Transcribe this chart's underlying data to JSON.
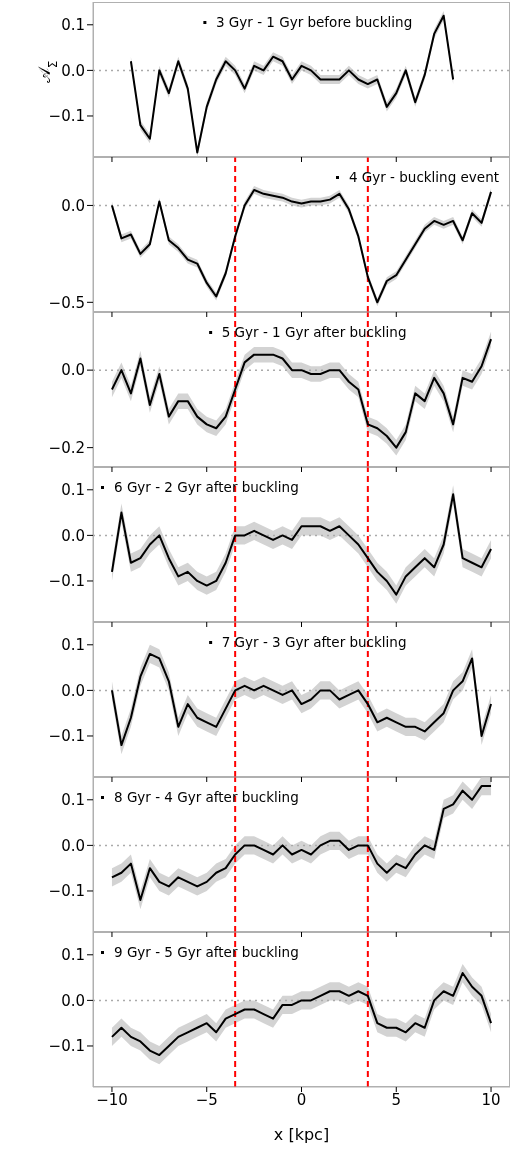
{
  "chart_data": [
    {
      "type": "line",
      "ylabel": "𝒜$_{Σ}$",
      "legend": "top",
      "tick_labels": "y",
      "marker": "none",
      "line_style": "solid",
      "xlim": [
        -11,
        11
      ],
      "xticks": [
        {
          "value": -10,
          "label": null
        },
        {
          "value": -5,
          "label": null
        },
        {
          "value": 0,
          "label": null
        },
        {
          "value": 5,
          "label": null
        },
        {
          "value": 10,
          "label": null
        }
      ],
      "ylim": [
        -0.19,
        0.15
      ],
      "yticks": [
        {
          "value": -0.1,
          "label": "−0.1"
        },
        {
          "value": 0,
          "label": "0.0"
        },
        {
          "value": 0.1,
          "label": "0.1"
        }
      ],
      "ref_lines": [
        {
          "axis": "y",
          "value": 0,
          "color": "#aaaaaa",
          "line_style": "dotted"
        }
      ],
      "x": [
        -9,
        -8.5,
        -8,
        -7.5,
        -7,
        -6.5,
        -6,
        -5.5,
        -5,
        -4.5,
        -4,
        -3.5,
        -3,
        -2.5,
        -2,
        -1.5,
        -1,
        -0.5,
        0,
        0.5,
        1,
        1.5,
        2,
        2.5,
        3,
        3.5,
        4,
        4.5,
        5,
        5.5,
        6,
        6.5,
        7,
        7.5,
        8
      ],
      "series": [
        {
          "name": "3 Gyr - 1 Gyr before buckling",
          "color": "#000000",
          "values": [
            0.02,
            -0.12,
            -0.15,
            0.0,
            -0.05,
            0.02,
            -0.04,
            -0.18,
            -0.08,
            -0.02,
            0.02,
            0.0,
            -0.04,
            0.01,
            0.0,
            0.03,
            0.02,
            -0.02,
            0.01,
            0.0,
            -0.02,
            -0.02,
            -0.02,
            0.0,
            -0.02,
            -0.03,
            -0.02,
            -0.08,
            -0.05,
            0.0,
            -0.07,
            -0.01,
            0.08,
            0.12,
            -0.02
          ],
          "lower": [
            0.01,
            -0.13,
            -0.16,
            -0.01,
            -0.06,
            0.01,
            -0.05,
            -0.19,
            -0.09,
            -0.03,
            0.01,
            -0.01,
            -0.05,
            0.0,
            -0.01,
            0.02,
            0.01,
            -0.03,
            0.0,
            -0.01,
            -0.03,
            -0.03,
            -0.03,
            -0.01,
            -0.03,
            -0.04,
            -0.03,
            -0.09,
            -0.06,
            -0.01,
            -0.08,
            -0.02,
            0.07,
            0.11,
            -0.03
          ],
          "upper": [
            0.03,
            -0.11,
            -0.14,
            0.01,
            -0.04,
            0.03,
            -0.03,
            -0.17,
            -0.07,
            -0.01,
            0.03,
            0.01,
            -0.03,
            0.02,
            0.01,
            0.04,
            0.03,
            -0.01,
            0.02,
            0.01,
            -0.01,
            -0.01,
            -0.01,
            0.01,
            -0.01,
            -0.02,
            -0.01,
            -0.07,
            -0.04,
            0.01,
            -0.06,
            0.0,
            0.09,
            0.13,
            -0.01
          ]
        }
      ]
    },
    {
      "type": "line",
      "legend": "top right",
      "tick_labels": "y",
      "marker": "none",
      "line_style": "solid",
      "xlim": [
        -11,
        11
      ],
      "xticks": [
        {
          "value": -10,
          "label": null
        },
        {
          "value": -5,
          "label": null
        },
        {
          "value": 0,
          "label": null
        },
        {
          "value": 5,
          "label": null
        },
        {
          "value": 10,
          "label": null
        }
      ],
      "ylim": [
        -0.55,
        0.25
      ],
      "yticks": [
        {
          "value": -0.5,
          "label": "−0.5"
        },
        {
          "value": 0,
          "label": "0.0"
        }
      ],
      "ref_lines": [
        {
          "axis": "y",
          "value": 0,
          "color": "#aaaaaa",
          "line_style": "dotted"
        },
        {
          "axis": "x",
          "value": -3.5,
          "color": "#ff0000",
          "line_style": "dashed"
        },
        {
          "axis": "x",
          "value": 3.5,
          "color": "#ff0000",
          "line_style": "dashed"
        }
      ],
      "x": [
        -10,
        -9.5,
        -9,
        -8.5,
        -8,
        -7.5,
        -7,
        -6.5,
        -6,
        -5.5,
        -5,
        -4.5,
        -4,
        -3.5,
        -3,
        -2.5,
        -2,
        -1.5,
        -1,
        -0.5,
        0,
        0.5,
        1,
        1.5,
        2,
        2.5,
        3,
        3.5,
        4,
        4.5,
        5,
        5.5,
        6,
        6.5,
        7,
        7.5,
        8,
        8.5,
        9,
        9.5,
        10
      ],
      "series": [
        {
          "name": "4 Gyr - buckling event",
          "color": "#000000",
          "values": [
            0.0,
            -0.17,
            -0.15,
            -0.25,
            -0.2,
            0.02,
            -0.18,
            -0.22,
            -0.28,
            -0.3,
            -0.4,
            -0.47,
            -0.35,
            -0.16,
            0.0,
            0.08,
            0.06,
            0.05,
            0.04,
            0.02,
            0.01,
            0.02,
            0.02,
            0.03,
            0.06,
            -0.02,
            -0.16,
            -0.37,
            -0.5,
            -0.39,
            -0.36,
            -0.28,
            -0.2,
            -0.12,
            -0.08,
            -0.1,
            -0.08,
            -0.18,
            -0.04,
            -0.09,
            0.07
          ],
          "lower": [
            -0.02,
            -0.19,
            -0.17,
            -0.27,
            -0.22,
            0.0,
            -0.2,
            -0.24,
            -0.3,
            -0.32,
            -0.42,
            -0.49,
            -0.37,
            -0.18,
            -0.02,
            0.06,
            0.04,
            0.03,
            0.02,
            0.0,
            -0.01,
            0.0,
            0.0,
            0.01,
            0.04,
            -0.04,
            -0.18,
            -0.39,
            -0.52,
            -0.41,
            -0.38,
            -0.3,
            -0.22,
            -0.14,
            -0.1,
            -0.12,
            -0.1,
            -0.2,
            -0.06,
            -0.11,
            0.05
          ],
          "upper": [
            0.02,
            -0.15,
            -0.13,
            -0.23,
            -0.18,
            0.04,
            -0.16,
            -0.2,
            -0.26,
            -0.28,
            -0.38,
            -0.45,
            -0.33,
            -0.14,
            0.02,
            0.1,
            0.08,
            0.07,
            0.06,
            0.04,
            0.03,
            0.04,
            0.04,
            0.05,
            0.08,
            0.0,
            -0.14,
            -0.35,
            -0.48,
            -0.37,
            -0.34,
            -0.26,
            -0.18,
            -0.1,
            -0.06,
            -0.08,
            -0.06,
            -0.16,
            -0.02,
            -0.07,
            0.09
          ]
        }
      ]
    },
    {
      "type": "line",
      "legend": "top",
      "tick_labels": "y",
      "marker": "none",
      "line_style": "solid",
      "xlim": [
        -11,
        11
      ],
      "xticks": [
        {
          "value": -10,
          "label": null
        },
        {
          "value": -5,
          "label": null
        },
        {
          "value": 0,
          "label": null
        },
        {
          "value": 5,
          "label": null
        },
        {
          "value": 10,
          "label": null
        }
      ],
      "ylim": [
        -0.25,
        0.15
      ],
      "yticks": [
        {
          "value": -0.2,
          "label": "−0.2"
        },
        {
          "value": 0,
          "label": "0.0"
        }
      ],
      "ref_lines": [
        {
          "axis": "y",
          "value": 0,
          "color": "#aaaaaa",
          "line_style": "dotted"
        },
        {
          "axis": "x",
          "value": -3.5,
          "color": "#ff0000",
          "line_style": "dashed"
        },
        {
          "axis": "x",
          "value": 3.5,
          "color": "#ff0000",
          "line_style": "dashed"
        }
      ],
      "x": [
        -10,
        -9.5,
        -9,
        -8.5,
        -8,
        -7.5,
        -7,
        -6.5,
        -6,
        -5.5,
        -5,
        -4.5,
        -4,
        -3.5,
        -3,
        -2.5,
        -2,
        -1.5,
        -1,
        -0.5,
        0,
        0.5,
        1,
        1.5,
        2,
        2.5,
        3,
        3.5,
        4,
        4.5,
        5,
        5.5,
        6,
        6.5,
        7,
        7.5,
        8,
        8.5,
        9,
        9.5,
        10
      ],
      "series": [
        {
          "name": "5 Gyr - 1 Gyr after buckling",
          "color": "#000000",
          "values": [
            -0.05,
            0.0,
            -0.06,
            0.03,
            -0.09,
            -0.01,
            -0.12,
            -0.08,
            -0.08,
            -0.12,
            -0.14,
            -0.15,
            -0.12,
            -0.05,
            0.02,
            0.04,
            0.04,
            0.04,
            0.03,
            0.0,
            0.0,
            -0.01,
            -0.01,
            0.0,
            0.0,
            -0.03,
            -0.05,
            -0.14,
            -0.15,
            -0.17,
            -0.2,
            -0.16,
            -0.06,
            -0.08,
            -0.02,
            -0.06,
            -0.14,
            -0.02,
            -0.03,
            0.01,
            0.08
          ],
          "lower": [
            -0.07,
            -0.02,
            -0.08,
            0.01,
            -0.11,
            -0.03,
            -0.14,
            -0.1,
            -0.1,
            -0.14,
            -0.16,
            -0.17,
            -0.14,
            -0.07,
            0.0,
            0.02,
            0.02,
            0.02,
            0.01,
            -0.02,
            -0.02,
            -0.03,
            -0.03,
            -0.02,
            -0.02,
            -0.05,
            -0.07,
            -0.16,
            -0.17,
            -0.19,
            -0.22,
            -0.18,
            -0.08,
            -0.1,
            -0.04,
            -0.08,
            -0.16,
            -0.04,
            -0.05,
            -0.01,
            0.06
          ],
          "upper": [
            -0.03,
            0.02,
            -0.04,
            0.05,
            -0.07,
            0.01,
            -0.1,
            -0.06,
            -0.06,
            -0.1,
            -0.12,
            -0.13,
            -0.1,
            -0.03,
            0.04,
            0.06,
            0.06,
            0.06,
            0.05,
            0.02,
            0.02,
            0.01,
            0.01,
            0.02,
            0.02,
            -0.01,
            -0.03,
            -0.12,
            -0.13,
            -0.15,
            -0.18,
            -0.14,
            -0.04,
            -0.06,
            0.0,
            -0.04,
            -0.12,
            0.0,
            -0.01,
            0.03,
            0.1
          ]
        }
      ]
    },
    {
      "type": "line",
      "legend": "top left",
      "tick_labels": "y",
      "marker": "none",
      "line_style": "solid",
      "xlim": [
        -11,
        11
      ],
      "xticks": [
        {
          "value": -10,
          "label": null
        },
        {
          "value": -5,
          "label": null
        },
        {
          "value": 0,
          "label": null
        },
        {
          "value": 5,
          "label": null
        },
        {
          "value": 10,
          "label": null
        }
      ],
      "ylim": [
        -0.19,
        0.15
      ],
      "yticks": [
        {
          "value": -0.1,
          "label": "−0.1"
        },
        {
          "value": 0,
          "label": "0.0"
        },
        {
          "value": 0.1,
          "label": "0.1"
        }
      ],
      "ref_lines": [
        {
          "axis": "y",
          "value": 0,
          "color": "#aaaaaa",
          "line_style": "dotted"
        },
        {
          "axis": "x",
          "value": -3.5,
          "color": "#ff0000",
          "line_style": "dashed"
        },
        {
          "axis": "x",
          "value": 3.5,
          "color": "#ff0000",
          "line_style": "dashed"
        }
      ],
      "x": [
        -10,
        -9.5,
        -9,
        -8.5,
        -8,
        -7.5,
        -7,
        -6.5,
        -6,
        -5.5,
        -5,
        -4.5,
        -4,
        -3.5,
        -3,
        -2.5,
        -2,
        -1.5,
        -1,
        -0.5,
        0,
        0.5,
        1,
        1.5,
        2,
        2.5,
        3,
        3.5,
        4,
        4.5,
        5,
        5.5,
        6,
        6.5,
        7,
        7.5,
        8,
        8.5,
        9,
        9.5,
        10
      ],
      "series": [
        {
          "name": "6 Gyr - 2 Gyr after buckling",
          "color": "#000000",
          "values": [
            -0.08,
            0.05,
            -0.06,
            -0.05,
            -0.02,
            0.0,
            -0.05,
            -0.09,
            -0.08,
            -0.1,
            -0.11,
            -0.1,
            -0.06,
            0.0,
            0.0,
            0.01,
            0.0,
            -0.01,
            0.0,
            -0.01,
            0.02,
            0.02,
            0.02,
            0.01,
            0.02,
            0.0,
            -0.02,
            -0.05,
            -0.08,
            -0.1,
            -0.13,
            -0.09,
            -0.07,
            -0.05,
            -0.07,
            -0.02,
            0.09,
            -0.05,
            -0.06,
            -0.07,
            -0.03
          ],
          "lower": [
            -0.1,
            0.03,
            -0.08,
            -0.07,
            -0.04,
            -0.02,
            -0.07,
            -0.11,
            -0.1,
            -0.12,
            -0.13,
            -0.12,
            -0.08,
            -0.02,
            -0.02,
            -0.01,
            -0.02,
            -0.03,
            -0.02,
            -0.03,
            0.0,
            0.0,
            0.0,
            -0.01,
            0.0,
            -0.02,
            -0.04,
            -0.07,
            -0.1,
            -0.12,
            -0.15,
            -0.11,
            -0.09,
            -0.07,
            -0.09,
            -0.04,
            0.07,
            -0.07,
            -0.08,
            -0.09,
            -0.05
          ],
          "upper": [
            -0.06,
            0.07,
            -0.04,
            -0.03,
            0.0,
            0.02,
            -0.03,
            -0.07,
            -0.06,
            -0.08,
            -0.09,
            -0.08,
            -0.04,
            0.02,
            0.02,
            0.03,
            0.02,
            0.01,
            0.02,
            0.01,
            0.04,
            0.04,
            0.04,
            0.03,
            0.04,
            0.02,
            0.0,
            -0.03,
            -0.06,
            -0.08,
            -0.11,
            -0.07,
            -0.05,
            -0.03,
            -0.05,
            0.0,
            0.11,
            -0.03,
            -0.04,
            -0.05,
            -0.01
          ]
        }
      ]
    },
    {
      "type": "line",
      "legend": "top",
      "tick_labels": "y",
      "marker": "none",
      "line_style": "solid",
      "xlim": [
        -11,
        11
      ],
      "xticks": [
        {
          "value": -10,
          "label": null
        },
        {
          "value": -5,
          "label": null
        },
        {
          "value": 0,
          "label": null
        },
        {
          "value": 5,
          "label": null
        },
        {
          "value": 10,
          "label": null
        }
      ],
      "ylim": [
        -0.19,
        0.15
      ],
      "yticks": [
        {
          "value": -0.1,
          "label": "−0.1"
        },
        {
          "value": 0,
          "label": "0.0"
        },
        {
          "value": 0.1,
          "label": "0.1"
        }
      ],
      "ref_lines": [
        {
          "axis": "y",
          "value": 0,
          "color": "#aaaaaa",
          "line_style": "dotted"
        },
        {
          "axis": "x",
          "value": -3.5,
          "color": "#ff0000",
          "line_style": "dashed"
        },
        {
          "axis": "x",
          "value": 3.5,
          "color": "#ff0000",
          "line_style": "dashed"
        }
      ],
      "x": [
        -10,
        -9.5,
        -9,
        -8.5,
        -8,
        -7.5,
        -7,
        -6.5,
        -6,
        -5.5,
        -5,
        -4.5,
        -4,
        -3.5,
        -3,
        -2.5,
        -2,
        -1.5,
        -1,
        -0.5,
        0,
        0.5,
        1,
        1.5,
        2,
        2.5,
        3,
        3.5,
        4,
        4.5,
        5,
        5.5,
        6,
        6.5,
        7,
        7.5,
        8,
        8.5,
        9,
        9.5,
        10
      ],
      "series": [
        {
          "name": "7 Gyr - 3 Gyr after buckling",
          "color": "#000000",
          "values": [
            0.0,
            -0.12,
            -0.06,
            0.03,
            0.08,
            0.07,
            0.02,
            -0.08,
            -0.03,
            -0.06,
            -0.07,
            -0.08,
            -0.04,
            0.0,
            0.01,
            0.0,
            0.01,
            0.0,
            -0.01,
            0.0,
            -0.03,
            -0.02,
            0.0,
            0.0,
            -0.02,
            -0.01,
            0.0,
            -0.03,
            -0.07,
            -0.06,
            -0.07,
            -0.08,
            -0.08,
            -0.09,
            -0.07,
            -0.05,
            0.0,
            0.02,
            0.07,
            -0.1,
            -0.03
          ],
          "lower": [
            -0.02,
            -0.14,
            -0.08,
            0.01,
            0.06,
            0.05,
            0.0,
            -0.1,
            -0.05,
            -0.08,
            -0.09,
            -0.1,
            -0.06,
            -0.02,
            -0.01,
            -0.02,
            -0.01,
            -0.02,
            -0.03,
            -0.02,
            -0.05,
            -0.04,
            -0.02,
            -0.02,
            -0.04,
            -0.03,
            -0.02,
            -0.05,
            -0.09,
            -0.08,
            -0.09,
            -0.1,
            -0.1,
            -0.11,
            -0.09,
            -0.07,
            -0.02,
            0.0,
            0.05,
            -0.12,
            -0.05
          ],
          "upper": [
            0.02,
            -0.1,
            -0.04,
            0.05,
            0.1,
            0.09,
            0.04,
            -0.06,
            -0.01,
            -0.04,
            -0.05,
            -0.06,
            -0.02,
            0.02,
            0.03,
            0.02,
            0.03,
            0.02,
            0.01,
            0.02,
            -0.01,
            0.0,
            0.02,
            0.02,
            0.0,
            0.01,
            0.02,
            -0.01,
            -0.05,
            -0.04,
            -0.05,
            -0.06,
            -0.06,
            -0.07,
            -0.05,
            -0.03,
            0.02,
            0.04,
            0.09,
            -0.08,
            -0.01
          ]
        }
      ]
    },
    {
      "type": "line",
      "legend": "top left",
      "tick_labels": "y",
      "marker": "none",
      "line_style": "solid",
      "xlim": [
        -11,
        11
      ],
      "xticks": [
        {
          "value": -10,
          "label": null
        },
        {
          "value": -5,
          "label": null
        },
        {
          "value": 0,
          "label": null
        },
        {
          "value": 5,
          "label": null
        },
        {
          "value": 10,
          "label": null
        }
      ],
      "ylim": [
        -0.19,
        0.15
      ],
      "yticks": [
        {
          "value": -0.1,
          "label": "−0.1"
        },
        {
          "value": 0,
          "label": "0.0"
        },
        {
          "value": 0.1,
          "label": "0.1"
        }
      ],
      "ref_lines": [
        {
          "axis": "y",
          "value": 0,
          "color": "#aaaaaa",
          "line_style": "dotted"
        },
        {
          "axis": "x",
          "value": -3.5,
          "color": "#ff0000",
          "line_style": "dashed"
        },
        {
          "axis": "x",
          "value": 3.5,
          "color": "#ff0000",
          "line_style": "dashed"
        }
      ],
      "x": [
        -10,
        -9.5,
        -9,
        -8.5,
        -8,
        -7.5,
        -7,
        -6.5,
        -6,
        -5.5,
        -5,
        -4.5,
        -4,
        -3.5,
        -3,
        -2.5,
        -2,
        -1.5,
        -1,
        -0.5,
        0,
        0.5,
        1,
        1.5,
        2,
        2.5,
        3,
        3.5,
        4,
        4.5,
        5,
        5.5,
        6,
        6.5,
        7,
        7.5,
        8,
        8.5,
        9,
        9.5,
        10
      ],
      "series": [
        {
          "name": "8 Gyr - 4 Gyr after buckling",
          "color": "#000000",
          "values": [
            -0.07,
            -0.06,
            -0.04,
            -0.12,
            -0.05,
            -0.08,
            -0.09,
            -0.07,
            -0.08,
            -0.09,
            -0.08,
            -0.06,
            -0.05,
            -0.02,
            0.0,
            0.0,
            -0.01,
            -0.02,
            0.0,
            -0.02,
            -0.01,
            -0.02,
            0.0,
            0.01,
            0.01,
            -0.01,
            0.0,
            0.0,
            -0.04,
            -0.06,
            -0.04,
            -0.05,
            -0.02,
            0.0,
            -0.01,
            0.08,
            0.09,
            0.12,
            0.1,
            0.13,
            0.13
          ],
          "lower": [
            -0.09,
            -0.08,
            -0.06,
            -0.14,
            -0.07,
            -0.1,
            -0.11,
            -0.09,
            -0.1,
            -0.11,
            -0.1,
            -0.08,
            -0.07,
            -0.04,
            -0.02,
            -0.02,
            -0.03,
            -0.04,
            -0.02,
            -0.04,
            -0.03,
            -0.04,
            -0.02,
            -0.01,
            -0.01,
            -0.03,
            -0.02,
            -0.02,
            -0.06,
            -0.08,
            -0.06,
            -0.07,
            -0.04,
            -0.02,
            -0.03,
            0.06,
            0.07,
            0.1,
            0.08,
            0.11,
            0.11
          ],
          "upper": [
            -0.05,
            -0.04,
            -0.02,
            -0.1,
            -0.03,
            -0.06,
            -0.07,
            -0.05,
            -0.06,
            -0.07,
            -0.06,
            -0.04,
            -0.03,
            0.0,
            0.02,
            0.02,
            0.01,
            0.0,
            0.02,
            0.0,
            0.01,
            0.0,
            0.02,
            0.03,
            0.03,
            0.01,
            0.02,
            0.02,
            -0.02,
            -0.04,
            -0.02,
            -0.03,
            0.0,
            0.02,
            0.01,
            0.1,
            0.11,
            0.14,
            0.12,
            0.15,
            0.15
          ]
        }
      ]
    },
    {
      "type": "line",
      "xlabel": "x [kpc]",
      "legend": "top left",
      "marker": "none",
      "line_style": "solid",
      "xlim": [
        -11,
        11
      ],
      "xticks": [
        {
          "value": -10,
          "label": "−10"
        },
        {
          "value": -5,
          "label": "−5"
        },
        0,
        5,
        10
      ],
      "ylim": [
        -0.19,
        0.15
      ],
      "yticks": [
        {
          "value": -0.1,
          "label": "−0.1"
        },
        {
          "value": 0,
          "label": "0.0"
        },
        {
          "value": 0.1,
          "label": "0.1"
        }
      ],
      "ref_lines": [
        {
          "axis": "y",
          "value": 0,
          "color": "#aaaaaa",
          "line_style": "dotted"
        },
        {
          "axis": "x",
          "value": -3.5,
          "color": "#ff0000",
          "line_style": "dashed"
        },
        {
          "axis": "x",
          "value": 3.5,
          "color": "#ff0000",
          "line_style": "dashed"
        }
      ],
      "x": [
        -10,
        -9.5,
        -9,
        -8.5,
        -8,
        -7.5,
        -7,
        -6.5,
        -6,
        -5.5,
        -5,
        -4.5,
        -4,
        -3.5,
        -3,
        -2.5,
        -2,
        -1.5,
        -1,
        -0.5,
        0,
        0.5,
        1,
        1.5,
        2,
        2.5,
        3,
        3.5,
        4,
        4.5,
        5,
        5.5,
        6,
        6.5,
        7,
        7.5,
        8,
        8.5,
        9,
        9.5,
        10
      ],
      "series": [
        {
          "name": "9 Gyr - 5 Gyr after buckling",
          "color": "#000000",
          "values": [
            -0.08,
            -0.06,
            -0.08,
            -0.09,
            -0.11,
            -0.12,
            -0.1,
            -0.08,
            -0.07,
            -0.06,
            -0.05,
            -0.07,
            -0.04,
            -0.03,
            -0.02,
            -0.02,
            -0.03,
            -0.04,
            -0.01,
            -0.01,
            0.0,
            0.0,
            0.01,
            0.02,
            0.02,
            0.01,
            0.02,
            0.01,
            -0.05,
            -0.06,
            -0.06,
            -0.07,
            -0.05,
            -0.06,
            0.0,
            0.02,
            0.01,
            0.06,
            0.03,
            0.01,
            -0.05
          ],
          "lower": [
            -0.1,
            -0.08,
            -0.1,
            -0.11,
            -0.13,
            -0.14,
            -0.12,
            -0.1,
            -0.09,
            -0.08,
            -0.07,
            -0.09,
            -0.06,
            -0.05,
            -0.04,
            -0.04,
            -0.05,
            -0.06,
            -0.03,
            -0.03,
            -0.02,
            -0.02,
            -0.01,
            0.0,
            0.0,
            -0.01,
            0.0,
            -0.01,
            -0.07,
            -0.08,
            -0.08,
            -0.09,
            -0.07,
            -0.08,
            -0.02,
            0.0,
            -0.01,
            0.04,
            0.01,
            -0.01,
            -0.07
          ],
          "upper": [
            -0.06,
            -0.04,
            -0.06,
            -0.07,
            -0.09,
            -0.1,
            -0.08,
            -0.06,
            -0.05,
            -0.04,
            -0.03,
            -0.05,
            -0.02,
            -0.01,
            0.0,
            0.0,
            -0.01,
            -0.02,
            0.01,
            0.01,
            0.02,
            0.02,
            0.03,
            0.04,
            0.04,
            0.03,
            0.04,
            0.03,
            -0.03,
            -0.04,
            -0.04,
            -0.05,
            -0.03,
            -0.04,
            0.02,
            0.04,
            0.03,
            0.08,
            0.05,
            0.03,
            -0.03
          ]
        }
      ]
    }
  ]
}
